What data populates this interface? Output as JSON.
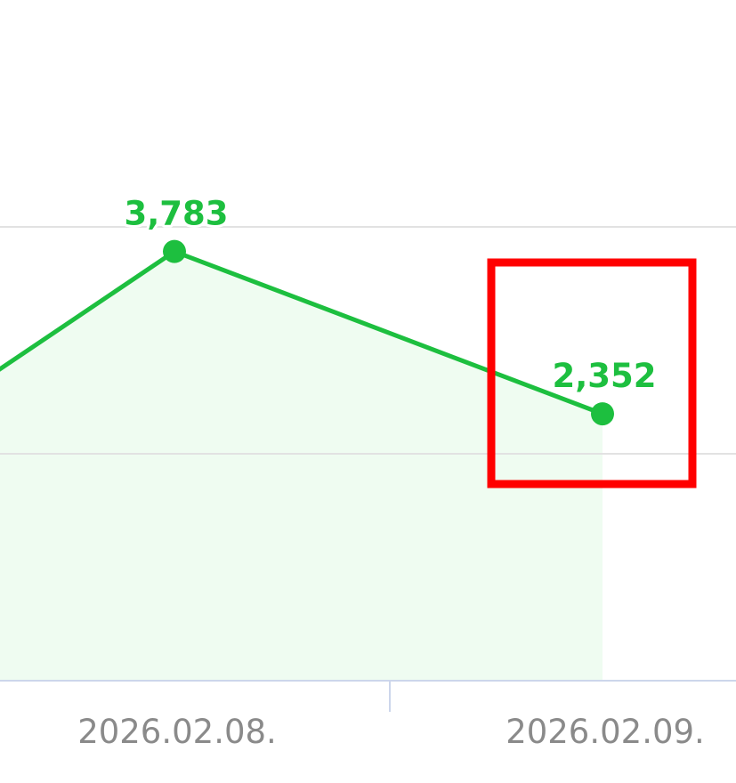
{
  "chart_data": {
    "type": "area",
    "categories": [
      "",
      "2026.02.08.",
      "2026.02.09."
    ],
    "series": [
      {
        "values": [
          1240,
          3783,
          2352
        ],
        "data_labels": [
          "",
          "3,783",
          "2,352"
        ]
      }
    ],
    "ylim": [
      0,
      4000
    ],
    "yticks": [
      0,
      2000,
      4000
    ],
    "grid": true,
    "legend": "none",
    "colors": {
      "line": "#1dbf3f",
      "fill": "#effcf1",
      "grid": "#e2e2e2",
      "axis": "#ccd6eb",
      "highlight": "#ff0000"
    },
    "highlight": {
      "target": "2026.02.09.",
      "shape": "rectangle"
    }
  }
}
